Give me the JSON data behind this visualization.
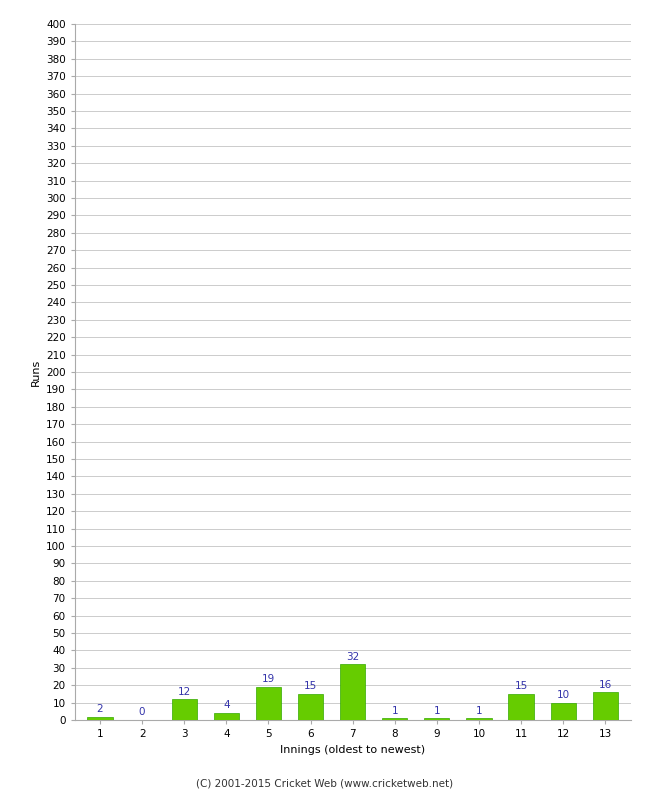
{
  "innings": [
    1,
    2,
    3,
    4,
    5,
    6,
    7,
    8,
    9,
    10,
    11,
    12,
    13
  ],
  "runs": [
    2,
    0,
    12,
    4,
    19,
    15,
    32,
    1,
    1,
    1,
    15,
    10,
    16
  ],
  "bar_color": "#66cc00",
  "bar_edge_color": "#33aa00",
  "label_color": "#3333aa",
  "xlabel": "Innings (oldest to newest)",
  "ylabel": "Runs",
  "ylim": [
    0,
    400
  ],
  "background_color": "#ffffff",
  "grid_color": "#cccccc",
  "footer": "(C) 2001-2015 Cricket Web (www.cricketweb.net)",
  "label_fontsize": 7.5,
  "tick_fontsize": 7.5,
  "axis_label_fontsize": 8,
  "footer_fontsize": 7.5
}
